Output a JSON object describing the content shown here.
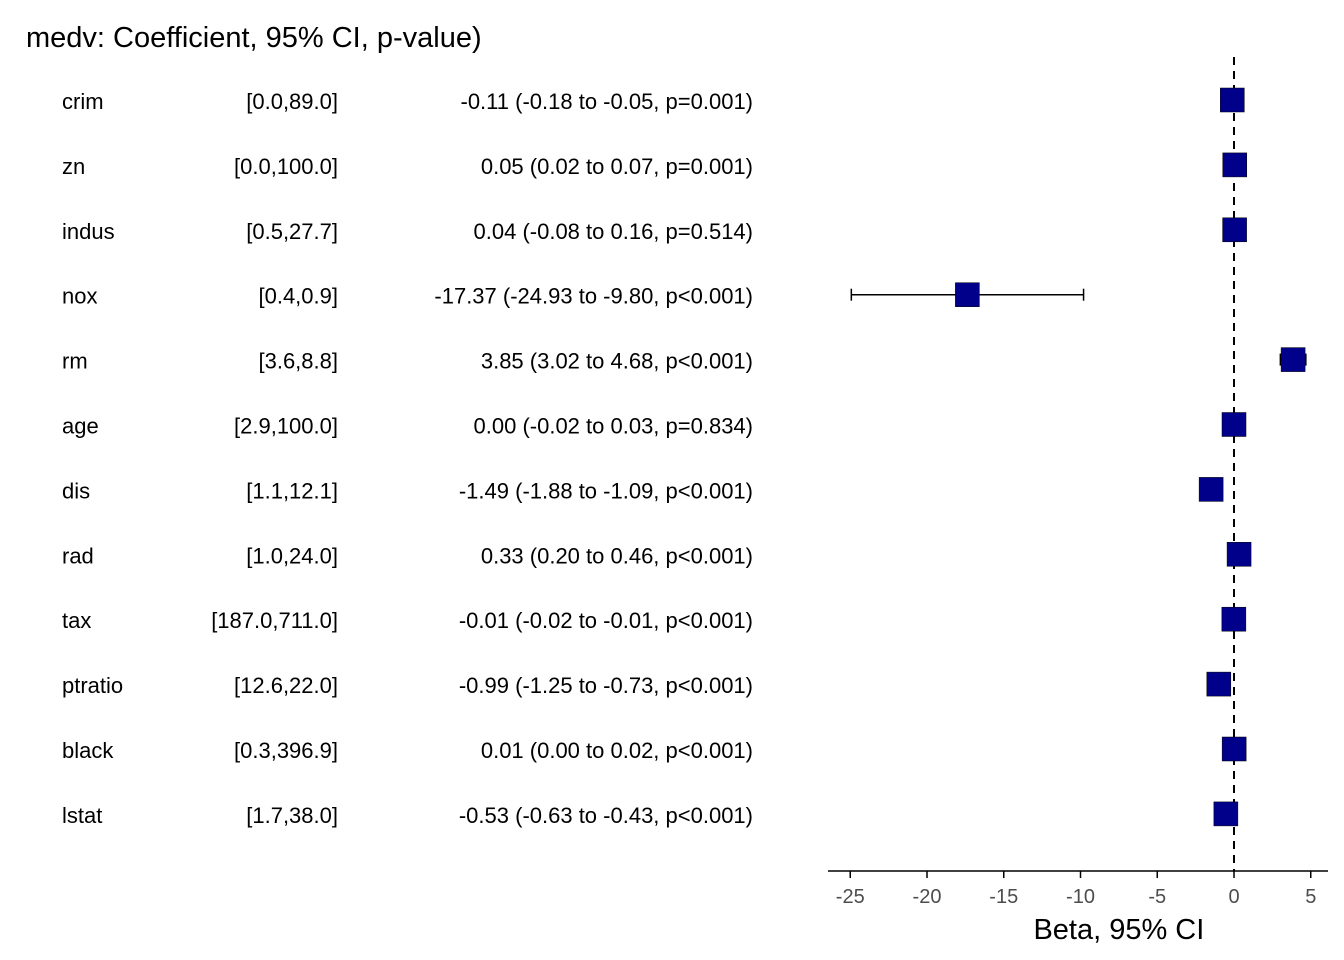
{
  "title": "medv: Coefficient, 95% CI, p-value)",
  "colors": {
    "marker_fill": "#00008B",
    "text": "#000000",
    "tick_text": "#4d4d4d",
    "reference_line": "#000000"
  },
  "chart_data": {
    "type": "forest",
    "title": "medv: Coefficient, 95% CI, p-value)",
    "xlabel": "Beta, 95% CI",
    "ylabel": "",
    "xlim": [
      -26,
      6
    ],
    "x_ticks": [
      -25,
      -20,
      -15,
      -10,
      -5,
      0,
      5
    ],
    "x_tick_labels": [
      "-25",
      "-20",
      "-15",
      "-10",
      "-5",
      "0",
      "5"
    ],
    "reference_line": 0,
    "grid": false,
    "rows": [
      {
        "variable": "crim",
        "range": "[0.0,89.0]",
        "label": "-0.11 (-0.18 to -0.05, p=0.001)",
        "estimate": -0.11,
        "lower": -0.18,
        "upper": -0.05
      },
      {
        "variable": "zn",
        "range": "[0.0,100.0]",
        "label": "0.05 (0.02 to 0.07, p=0.001)",
        "estimate": 0.05,
        "lower": 0.02,
        "upper": 0.07
      },
      {
        "variable": "indus",
        "range": "[0.5,27.7]",
        "label": "0.04 (-0.08 to 0.16, p=0.514)",
        "estimate": 0.04,
        "lower": -0.08,
        "upper": 0.16
      },
      {
        "variable": "nox",
        "range": "[0.4,0.9]",
        "label": "-17.37 (-24.93 to -9.80, p<0.001)",
        "estimate": -17.37,
        "lower": -24.93,
        "upper": -9.8
      },
      {
        "variable": "rm",
        "range": "[3.6,8.8]",
        "label": "3.85 (3.02 to 4.68, p<0.001)",
        "estimate": 3.85,
        "lower": 3.02,
        "upper": 4.68
      },
      {
        "variable": "age",
        "range": "[2.9,100.0]",
        "label": "0.00 (-0.02 to 0.03, p=0.834)",
        "estimate": 0.0,
        "lower": -0.02,
        "upper": 0.03
      },
      {
        "variable": "dis",
        "range": "[1.1,12.1]",
        "label": "-1.49 (-1.88 to -1.09, p<0.001)",
        "estimate": -1.49,
        "lower": -1.88,
        "upper": -1.09
      },
      {
        "variable": "rad",
        "range": "[1.0,24.0]",
        "label": "0.33 (0.20 to 0.46, p<0.001)",
        "estimate": 0.33,
        "lower": 0.2,
        "upper": 0.46
      },
      {
        "variable": "tax",
        "range": "[187.0,711.0]",
        "label": "-0.01 (-0.02 to -0.01, p<0.001)",
        "estimate": -0.01,
        "lower": -0.02,
        "upper": -0.01
      },
      {
        "variable": "ptratio",
        "range": "[12.6,22.0]",
        "label": "-0.99 (-1.25 to -0.73, p<0.001)",
        "estimate": -0.99,
        "lower": -1.25,
        "upper": -0.73
      },
      {
        "variable": "black",
        "range": "[0.3,396.9]",
        "label": "0.01 (0.00 to 0.02, p<0.001)",
        "estimate": 0.01,
        "lower": 0.0,
        "upper": 0.02
      },
      {
        "variable": "lstat",
        "range": "[1.7,38.0]",
        "label": "-0.53 (-0.63 to -0.43, p<0.001)",
        "estimate": -0.53,
        "lower": -0.63,
        "upper": -0.43
      }
    ]
  }
}
